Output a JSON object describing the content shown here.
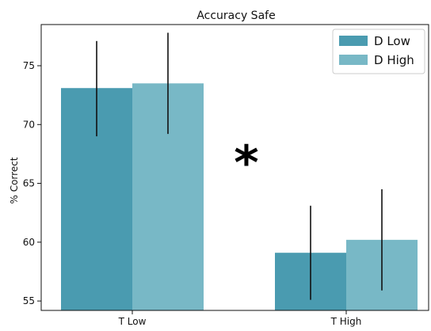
{
  "chart_data": {
    "type": "bar",
    "title": "Accuracy Safe",
    "xlabel": "",
    "ylabel": "% Correct",
    "categories": [
      "T Low",
      "T High"
    ],
    "series": [
      {
        "name": "D Low",
        "color": "#4a9bb0",
        "values": [
          73.1,
          59.1
        ],
        "error": [
          [
            69.0,
            77.1
          ],
          [
            55.1,
            63.1
          ]
        ]
      },
      {
        "name": "D High",
        "color": "#78b8c6",
        "values": [
          73.5,
          60.2
        ],
        "error": [
          [
            69.2,
            77.8
          ],
          [
            55.9,
            64.5
          ]
        ]
      }
    ],
    "ylim": [
      54.2,
      78.5
    ],
    "yticks": [
      55,
      60,
      65,
      70,
      75
    ],
    "annotation": "*",
    "legend": "top-right",
    "grid": false
  }
}
